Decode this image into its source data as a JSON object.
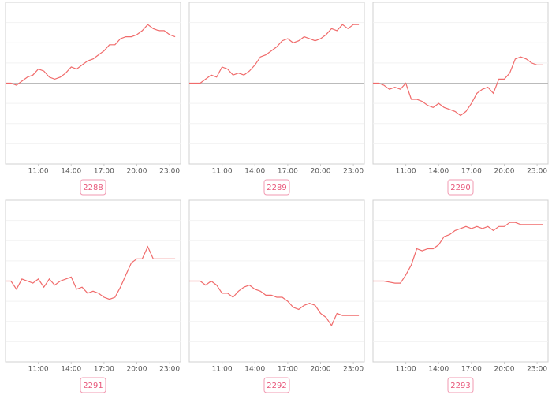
{
  "chart_data": [
    {
      "type": "line",
      "title": "2288",
      "color": "#f06b6b",
      "xlim": [
        8,
        24
      ],
      "ylim": [
        -4,
        4
      ],
      "grid": true,
      "xticks": [
        {
          "value": 11,
          "label": "11:00"
        },
        {
          "value": 14,
          "label": "14:00"
        },
        {
          "value": 17,
          "label": "17:00"
        },
        {
          "value": 20,
          "label": "20:00"
        },
        {
          "value": 23,
          "label": "23:00"
        }
      ],
      "yticks": [
        -3,
        -2,
        -1,
        0,
        1,
        2,
        3
      ],
      "x": [
        8,
        8.5,
        9,
        9.5,
        10,
        10.5,
        11,
        11.5,
        12,
        12.5,
        13,
        13.5,
        14,
        14.5,
        15,
        15.5,
        16,
        16.5,
        17,
        17.5,
        18,
        18.5,
        19,
        19.5,
        20,
        20.5,
        21,
        21.5,
        22,
        22.5,
        23,
        23.5
      ],
      "values": [
        0,
        0,
        -0.1,
        0.1,
        0.3,
        0.4,
        0.7,
        0.6,
        0.3,
        0.2,
        0.3,
        0.5,
        0.8,
        0.7,
        0.9,
        1.1,
        1.2,
        1.4,
        1.6,
        1.9,
        1.9,
        2.2,
        2.3,
        2.3,
        2.4,
        2.6,
        2.9,
        2.7,
        2.6,
        2.6,
        2.4,
        2.3
      ]
    },
    {
      "type": "line",
      "title": "2289",
      "color": "#f06b6b",
      "xlim": [
        8,
        24
      ],
      "ylim": [
        -4,
        4
      ],
      "grid": true,
      "xticks": [
        {
          "value": 11,
          "label": "11:00"
        },
        {
          "value": 14,
          "label": "14:00"
        },
        {
          "value": 17,
          "label": "17:00"
        },
        {
          "value": 20,
          "label": "20:00"
        },
        {
          "value": 23,
          "label": "23:00"
        }
      ],
      "yticks": [
        -3,
        -2,
        -1,
        0,
        1,
        2,
        3
      ],
      "x": [
        8,
        8.5,
        9,
        9.5,
        10,
        10.5,
        11,
        11.5,
        12,
        12.5,
        13,
        13.5,
        14,
        14.5,
        15,
        15.5,
        16,
        16.5,
        17,
        17.5,
        18,
        18.5,
        19,
        19.5,
        20,
        20.5,
        21,
        21.5,
        22,
        22.5,
        23,
        23.5
      ],
      "values": [
        0,
        0,
        0,
        0.2,
        0.4,
        0.3,
        0.8,
        0.7,
        0.4,
        0.5,
        0.4,
        0.6,
        0.9,
        1.3,
        1.4,
        1.6,
        1.8,
        2.1,
        2.2,
        2.0,
        2.1,
        2.3,
        2.2,
        2.1,
        2.2,
        2.4,
        2.7,
        2.6,
        2.9,
        2.7,
        2.9,
        2.9
      ]
    },
    {
      "type": "line",
      "title": "2290",
      "color": "#f06b6b",
      "xlim": [
        8,
        24
      ],
      "ylim": [
        -4,
        4
      ],
      "grid": true,
      "xticks": [
        {
          "value": 11,
          "label": "11:00"
        },
        {
          "value": 14,
          "label": "14:00"
        },
        {
          "value": 17,
          "label": "17:00"
        },
        {
          "value": 20,
          "label": "20:00"
        },
        {
          "value": 23,
          "label": "23:00"
        }
      ],
      "yticks": [
        -3,
        -2,
        -1,
        0,
        1,
        2,
        3
      ],
      "x": [
        8,
        8.5,
        9,
        9.5,
        10,
        10.5,
        11,
        11.5,
        12,
        12.5,
        13,
        13.5,
        14,
        14.5,
        15,
        15.5,
        16,
        16.5,
        17,
        17.5,
        18,
        18.5,
        19,
        19.5,
        20,
        20.5,
        21,
        21.5,
        22,
        22.5,
        23,
        23.5
      ],
      "values": [
        0,
        0,
        -0.1,
        -0.3,
        -0.2,
        -0.3,
        0,
        -0.8,
        -0.8,
        -0.9,
        -1.1,
        -1.2,
        -1.0,
        -1.2,
        -1.3,
        -1.4,
        -1.6,
        -1.4,
        -1.0,
        -0.5,
        -0.3,
        -0.2,
        -0.5,
        0.2,
        0.2,
        0.5,
        1.2,
        1.3,
        1.2,
        1.0,
        0.9,
        0.9
      ]
    },
    {
      "type": "line",
      "title": "2291",
      "color": "#f06b6b",
      "xlim": [
        8,
        24
      ],
      "ylim": [
        -4,
        4
      ],
      "grid": true,
      "xticks": [
        {
          "value": 11,
          "label": "11:00"
        },
        {
          "value": 14,
          "label": "14:00"
        },
        {
          "value": 17,
          "label": "17:00"
        },
        {
          "value": 20,
          "label": "20:00"
        },
        {
          "value": 23,
          "label": "23:00"
        }
      ],
      "yticks": [
        -3,
        -2,
        -1,
        0,
        1,
        2,
        3
      ],
      "x": [
        8,
        8.5,
        9,
        9.5,
        10,
        10.5,
        11,
        11.5,
        12,
        12.5,
        13,
        13.5,
        14,
        14.5,
        15,
        15.5,
        16,
        16.5,
        17,
        17.5,
        18,
        18.5,
        19,
        19.5,
        20,
        20.5,
        21,
        21.5,
        22,
        22.5,
        23,
        23.5
      ],
      "values": [
        0,
        0,
        -0.4,
        0.1,
        0,
        -0.1,
        0.1,
        -0.3,
        0.1,
        -0.2,
        0,
        0.1,
        0.2,
        -0.4,
        -0.3,
        -0.6,
        -0.5,
        -0.6,
        -0.8,
        -0.9,
        -0.8,
        -0.3,
        0.3,
        0.9,
        1.1,
        1.1,
        1.7,
        1.1,
        1.1,
        1.1,
        1.1,
        1.1
      ]
    },
    {
      "type": "line",
      "title": "2292",
      "color": "#f06b6b",
      "xlim": [
        8,
        24
      ],
      "ylim": [
        -4,
        4
      ],
      "grid": true,
      "xticks": [
        {
          "value": 11,
          "label": "11:00"
        },
        {
          "value": 14,
          "label": "14:00"
        },
        {
          "value": 17,
          "label": "17:00"
        },
        {
          "value": 20,
          "label": "20:00"
        },
        {
          "value": 23,
          "label": "23:00"
        }
      ],
      "yticks": [
        -3,
        -2,
        -1,
        0,
        1,
        2,
        3
      ],
      "x": [
        8,
        8.5,
        9,
        9.5,
        10,
        10.5,
        11,
        11.5,
        12,
        12.5,
        13,
        13.5,
        14,
        14.5,
        15,
        15.5,
        16,
        16.5,
        17,
        17.5,
        18,
        18.5,
        19,
        19.5,
        20,
        20.5,
        21,
        21.5,
        22,
        22.5,
        23,
        23.5
      ],
      "values": [
        0,
        0,
        0,
        -0.2,
        0,
        -0.2,
        -0.6,
        -0.6,
        -0.8,
        -0.5,
        -0.3,
        -0.2,
        -0.4,
        -0.5,
        -0.7,
        -0.7,
        -0.8,
        -0.8,
        -1.0,
        -1.3,
        -1.4,
        -1.2,
        -1.1,
        -1.2,
        -1.6,
        -1.8,
        -2.2,
        -1.6,
        -1.7,
        -1.7,
        -1.7,
        -1.7
      ]
    },
    {
      "type": "line",
      "title": "2293",
      "color": "#f06b6b",
      "xlim": [
        8,
        24
      ],
      "ylim": [
        -4,
        4
      ],
      "grid": true,
      "xticks": [
        {
          "value": 11,
          "label": "11:00"
        },
        {
          "value": 14,
          "label": "14:00"
        },
        {
          "value": 17,
          "label": "17:00"
        },
        {
          "value": 20,
          "label": "20:00"
        },
        {
          "value": 23,
          "label": "23:00"
        }
      ],
      "yticks": [
        -3,
        -2,
        -1,
        0,
        1,
        2,
        3
      ],
      "x": [
        8,
        8.5,
        9,
        9.5,
        10,
        10.5,
        11,
        11.5,
        12,
        12.5,
        13,
        13.5,
        14,
        14.5,
        15,
        15.5,
        16,
        16.5,
        17,
        17.5,
        18,
        18.5,
        19,
        19.5,
        20,
        20.5,
        21,
        21.5,
        22,
        22.5,
        23,
        23.5
      ],
      "values": [
        0,
        0,
        0,
        -0.05,
        -0.1,
        -0.1,
        0.3,
        0.8,
        1.6,
        1.5,
        1.6,
        1.6,
        1.8,
        2.2,
        2.3,
        2.5,
        2.6,
        2.7,
        2.6,
        2.7,
        2.6,
        2.7,
        2.5,
        2.7,
        2.7,
        2.9,
        2.9,
        2.8,
        2.8,
        2.8,
        2.8,
        2.8
      ]
    }
  ]
}
